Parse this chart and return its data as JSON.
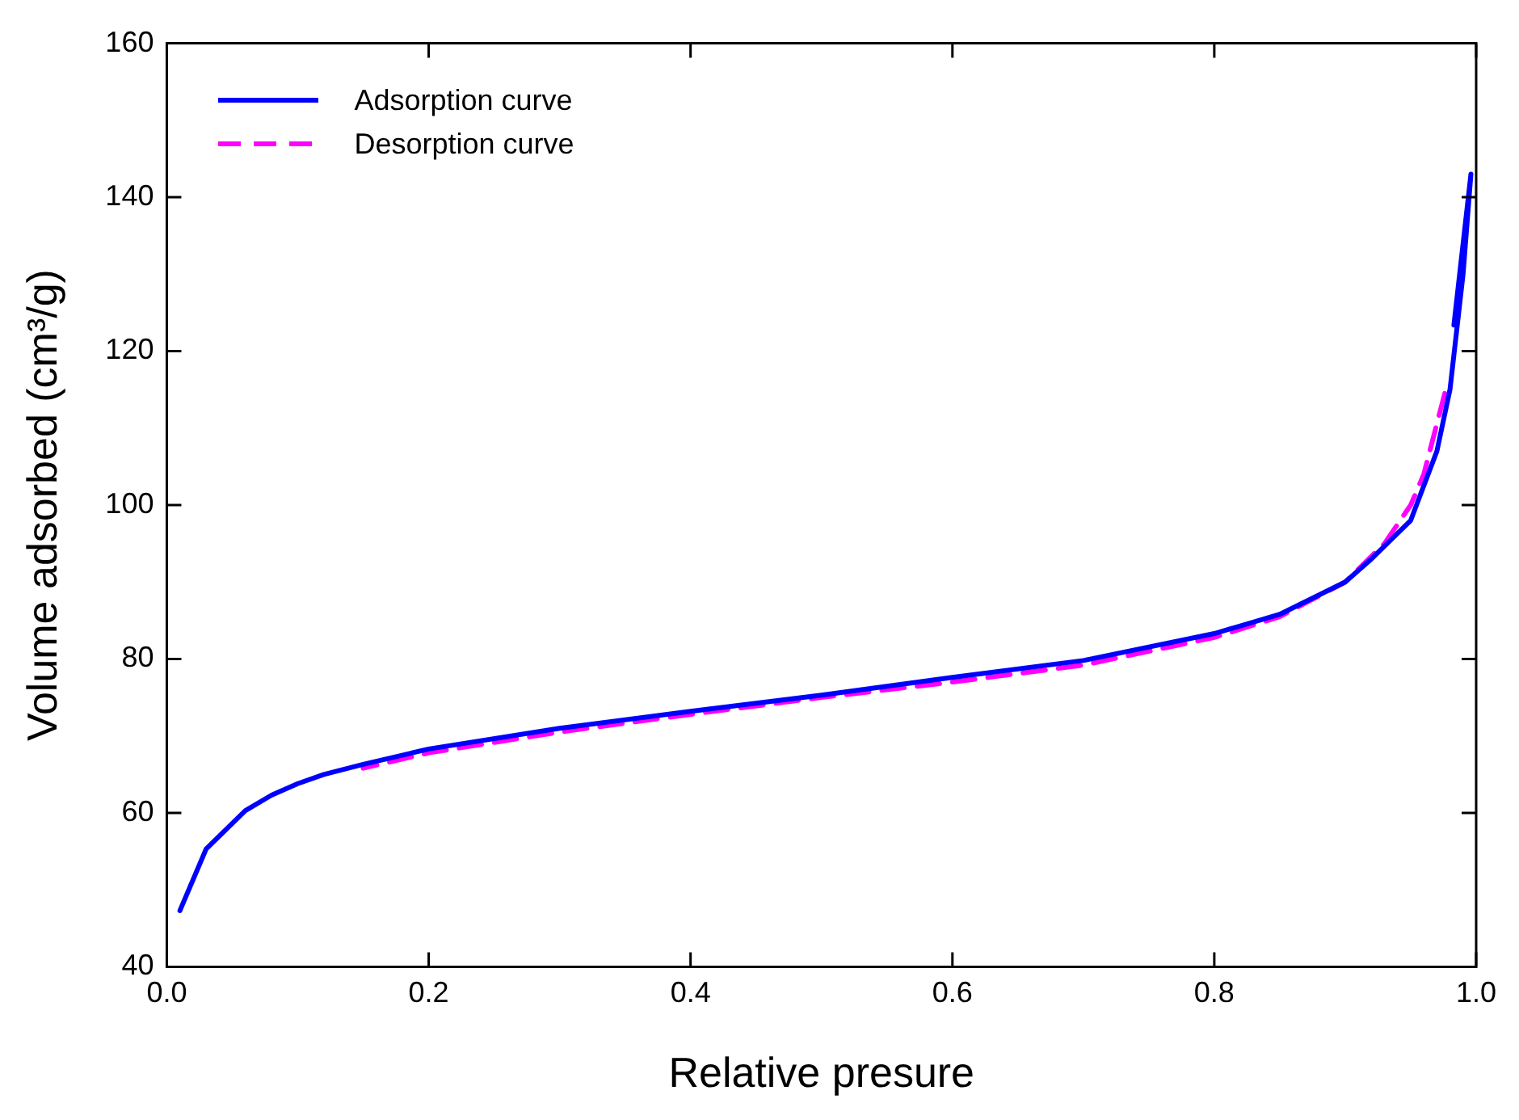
{
  "chart_data": {
    "type": "line",
    "xlabel": "Relative presure",
    "ylabel": "Volume adsorbed (cm³/g)",
    "xlim": [
      0,
      1
    ],
    "ylim": [
      40,
      160
    ],
    "xticks": [
      {
        "value": 0,
        "label": "0.0"
      },
      0.2,
      0.4,
      0.6,
      0.8,
      {
        "value": 1,
        "label": "1.0"
      }
    ],
    "yticks": [
      40,
      60,
      80,
      100,
      120,
      140,
      160
    ],
    "grid": false,
    "legend": "top left",
    "marker": "none",
    "series": [
      {
        "name": "Adsorption curve",
        "color": "#0000ff",
        "line_style": "solid",
        "x": [
          0.01,
          0.03,
          0.06,
          0.08,
          0.1,
          0.12,
          0.15,
          0.2,
          0.3,
          0.4,
          0.5,
          0.6,
          0.7,
          0.8,
          0.85,
          0.9,
          0.92,
          0.95,
          0.97,
          0.98,
          0.99,
          0.996,
          0.983
        ],
        "values": [
          47.3,
          55.3,
          60.3,
          62.3,
          63.8,
          65,
          66.3,
          68.3,
          71,
          73.2,
          75.3,
          77.6,
          79.8,
          83.3,
          85.8,
          90,
          93,
          98,
          107,
          115,
          130,
          143,
          123.4
        ]
      },
      {
        "name": "Desorption curve",
        "color": "#ff00ff",
        "line_style": "dashed",
        "x": [
          0.976,
          0.96,
          0.95,
          0.93,
          0.9,
          0.85,
          0.8,
          0.7,
          0.6,
          0.5,
          0.4,
          0.3,
          0.2,
          0.15
        ],
        "values": [
          114.5,
          104,
          100,
          95,
          90,
          85.5,
          82.8,
          79.2,
          77,
          75,
          72.8,
          70.5,
          67.8,
          65.8
        ]
      }
    ]
  }
}
